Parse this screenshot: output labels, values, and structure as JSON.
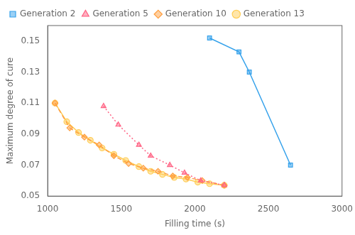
{
  "chart_data": {
    "type": "line",
    "xlabel": "Filling time (s)",
    "ylabel": "Maximum degree of cure",
    "xlim": [
      1000,
      3000
    ],
    "ylim": [
      0.05,
      0.16
    ],
    "xticks": [
      1000,
      1500,
      2000,
      2500,
      3000
    ],
    "yticks": [
      0.05,
      0.07,
      0.09,
      0.11,
      0.13,
      0.15
    ],
    "grid": false,
    "legend": "upper left",
    "series": [
      {
        "name": "Generation 2",
        "marker": "square",
        "line_style": "solid",
        "x": [
          2100,
          2300,
          2370,
          2650
        ],
        "values": [
          0.152,
          0.143,
          0.13,
          0.07
        ]
      },
      {
        "name": "Generation 5",
        "marker": "triangle",
        "line_style": "dotted",
        "x": [
          1380,
          1480,
          1620,
          1700,
          1830,
          1930,
          2040,
          2200
        ],
        "values": [
          0.108,
          0.096,
          0.083,
          0.076,
          0.07,
          0.065,
          0.06,
          0.057
        ]
      },
      {
        "name": "Generation 10",
        "marker": "diamond",
        "line_style": "dashed",
        "x": [
          1050,
          1150,
          1250,
          1350,
          1450,
          1550,
          1650,
          1750,
          1850,
          1950,
          2050,
          2200
        ],
        "values": [
          0.11,
          0.094,
          0.088,
          0.083,
          0.076,
          0.071,
          0.068,
          0.066,
          0.063,
          0.062,
          0.06,
          0.057
        ]
      },
      {
        "name": "Generation 13",
        "marker": "circle",
        "line_style": "solid",
        "x": [
          1050,
          1130,
          1210,
          1290,
          1370,
          1450,
          1530,
          1620,
          1700,
          1780,
          1860,
          1940,
          2020,
          2100,
          2200
        ],
        "values": [
          0.11,
          0.098,
          0.091,
          0.086,
          0.081,
          0.077,
          0.073,
          0.069,
          0.066,
          0.064,
          0.062,
          0.061,
          0.059,
          0.058,
          0.057
        ]
      }
    ]
  }
}
